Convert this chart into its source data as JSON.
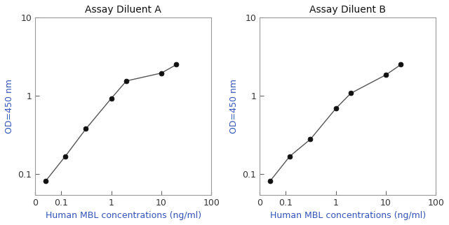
{
  "chart_A": {
    "title": "Assay Diluent A",
    "x": [
      0.049,
      0.12,
      0.31,
      1.0,
      2.0,
      10.0,
      20.0
    ],
    "y": [
      0.083,
      0.17,
      0.38,
      0.93,
      1.55,
      1.95,
      2.5
    ]
  },
  "chart_B": {
    "title": "Assay Diluent B",
    "x": [
      0.049,
      0.12,
      0.31,
      1.0,
      2.0,
      10.0,
      20.0
    ],
    "y": [
      0.083,
      0.17,
      0.28,
      0.69,
      1.08,
      1.85,
      2.5
    ]
  },
  "xlabel": "Human MBL concentrations (ng/ml)",
  "ylabel": "OD=450 nm",
  "xlim": [
    0.03,
    100
  ],
  "ylim": [
    0.055,
    10
  ],
  "xtick_positions": [
    0.03,
    0.1,
    1,
    10,
    100
  ],
  "xtick_labels": [
    "0",
    "0.1",
    "1",
    "10",
    "100"
  ],
  "ytick_positions": [
    0.1,
    1,
    10
  ],
  "ytick_labels": [
    "0.1",
    "1",
    "10"
  ],
  "line_color": "#555555",
  "marker_color": "#111111",
  "label_color": "#3355bb",
  "tick_label_color": "#333333",
  "title_color": "#111111",
  "title_fontsize": 10,
  "label_fontsize": 9,
  "tick_fontsize": 9,
  "marker_size": 5
}
